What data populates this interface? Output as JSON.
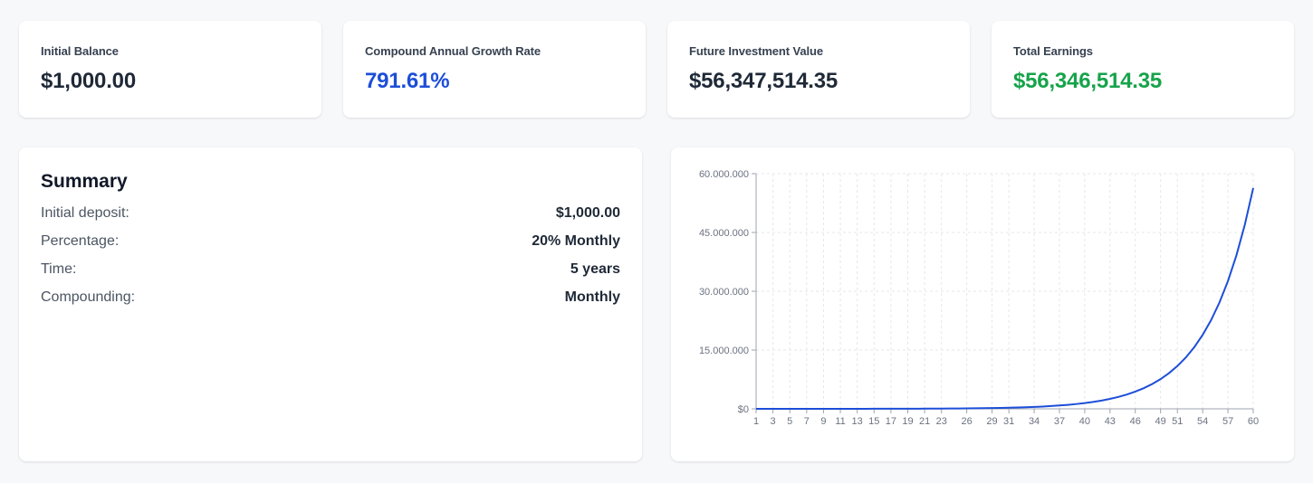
{
  "stats": [
    {
      "label": "Initial Balance",
      "value": "$1,000.00",
      "color": "#1f2937"
    },
    {
      "label": "Compound Annual Growth Rate",
      "value": "791.61%",
      "color": "#1d4ed8"
    },
    {
      "label": "Future Investment Value",
      "value": "$56,347,514.35",
      "color": "#1f2937"
    },
    {
      "label": "Total Earnings",
      "value": "$56,346,514.35",
      "color": "#16a34a"
    }
  ],
  "summary": {
    "title": "Summary",
    "rows": [
      {
        "label": "Initial deposit:",
        "value": "$1,000.00"
      },
      {
        "label": "Percentage:",
        "value": "20% Monthly"
      },
      {
        "label": "Time:",
        "value": "5 years"
      },
      {
        "label": "Compounding:",
        "value": "Monthly"
      }
    ]
  },
  "chart_data": {
    "type": "line",
    "x_tick_labels": [
      "1",
      "3",
      "5",
      "7",
      "9",
      "11",
      "13",
      "15",
      "17",
      "19",
      "21",
      "23",
      "26",
      "29",
      "31",
      "34",
      "37",
      "40",
      "43",
      "46",
      "49",
      "51",
      "54",
      "57",
      "60"
    ],
    "y_tick_labels": [
      "$0",
      "15.000.000",
      "30.000.000",
      "45.000.000",
      "60.000.000"
    ],
    "ylim": [
      0,
      60000000
    ],
    "xlim": [
      1,
      60
    ],
    "grid": true,
    "series": [
      {
        "initial": 1000,
        "monthly_rate": 0.2,
        "months": 60,
        "color": "#1d4ed8"
      }
    ]
  }
}
